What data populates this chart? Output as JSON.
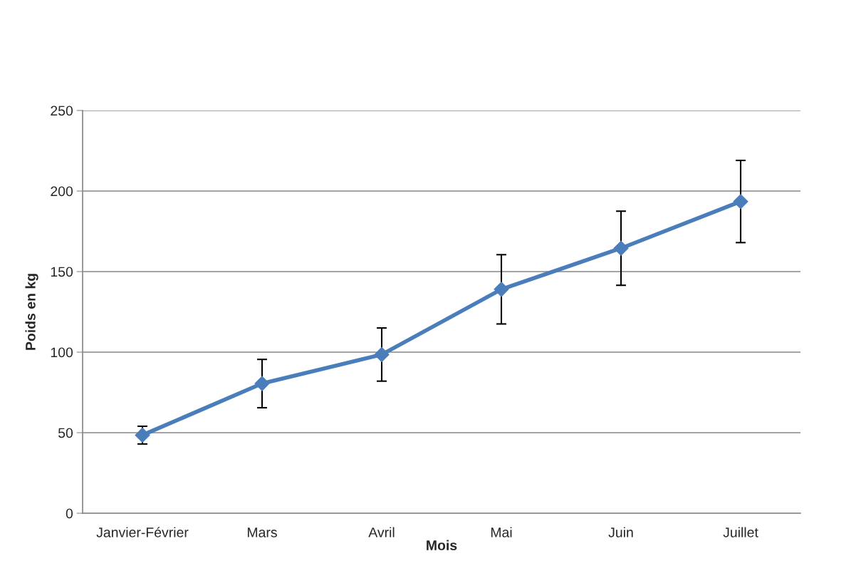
{
  "chart_data": {
    "type": "line",
    "xlabel": "Mois",
    "ylabel": "Poids en kg",
    "categories": [
      "Janvier-Février",
      "Mars",
      "Avril",
      "Mai",
      "Juin",
      "Juillet"
    ],
    "series": [
      {
        "color": "#4a7ebb",
        "values": [
          48.5,
          80.5,
          98.5,
          139,
          164.5,
          193.5
        ],
        "errors": [
          5.5,
          15,
          16.5,
          21.5,
          23,
          25.5
        ]
      }
    ],
    "ylim": [
      0,
      250
    ],
    "yticks": [
      0,
      50,
      100,
      150,
      200,
      250
    ],
    "grid": "y",
    "marker": "diamond",
    "line_style": "solid",
    "legend": false
  }
}
